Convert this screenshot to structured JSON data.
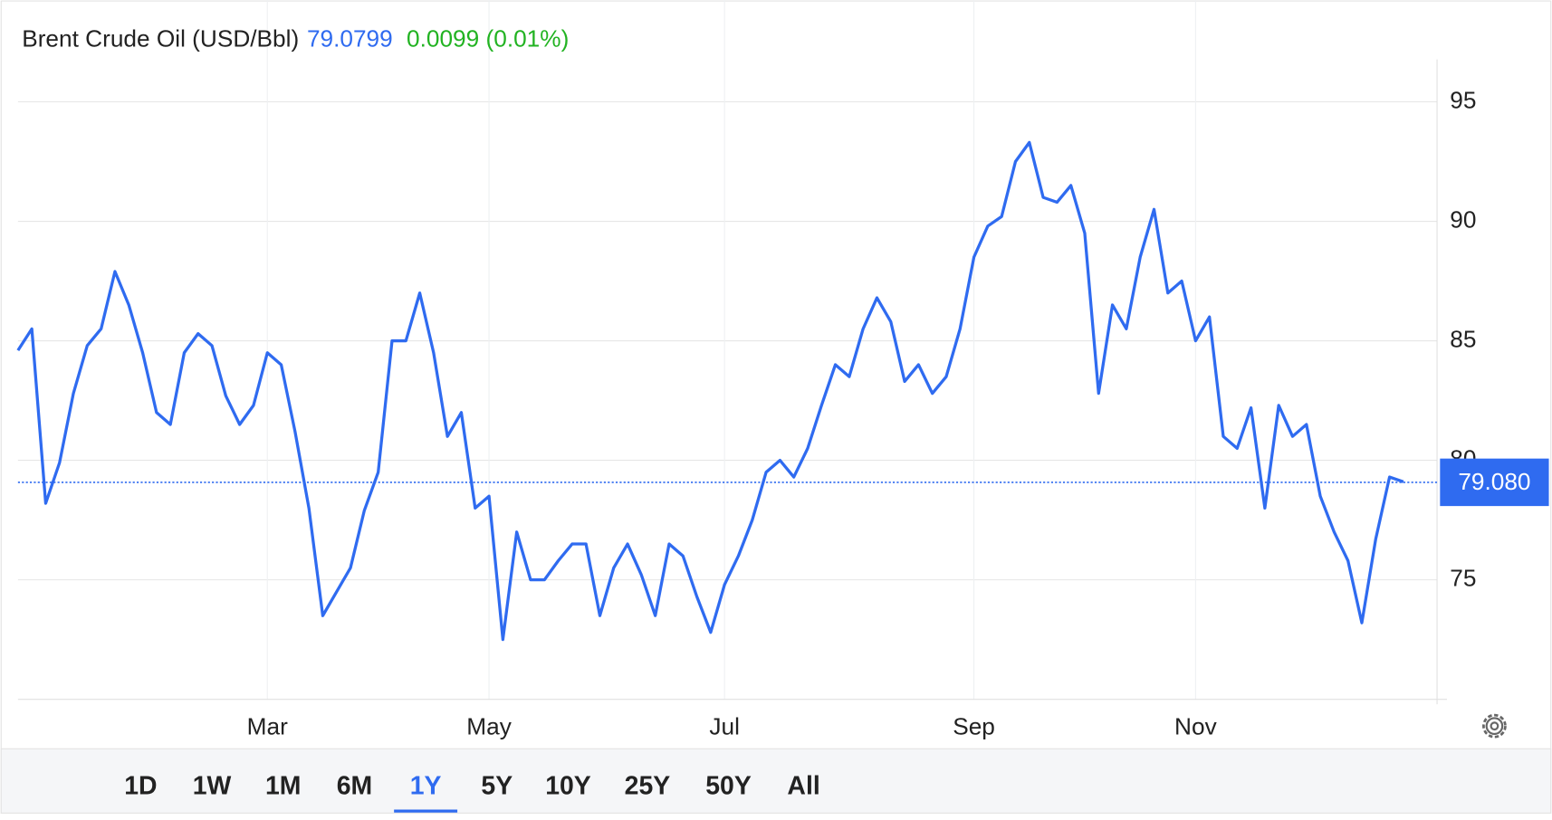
{
  "chart_data": {
    "type": "line",
    "title": "Brent Crude Oil (USD/Bbl)",
    "price": "79.0799",
    "change": "0.0099 (0.01%)",
    "categories": [
      null,
      null,
      null,
      null,
      null,
      null,
      null,
      null,
      null,
      null,
      null,
      null,
      null,
      null,
      null,
      null,
      null,
      null,
      "Mar",
      null,
      null,
      null,
      null,
      null,
      null,
      null,
      null,
      null,
      null,
      null,
      null,
      null,
      null,
      null,
      "May",
      null,
      null,
      null,
      null,
      null,
      null,
      null,
      null,
      null,
      null,
      null,
      null,
      null,
      null,
      null,
      null,
      "Jul",
      null,
      null,
      null,
      null,
      null,
      null,
      null,
      null,
      null,
      null,
      null,
      null,
      null,
      null,
      null,
      null,
      null,
      "Sep",
      null,
      null,
      null,
      null,
      null,
      null,
      null,
      null,
      null,
      null,
      null,
      null,
      null,
      null,
      null,
      "Nov",
      null,
      null,
      null,
      null,
      null,
      null,
      null,
      null,
      null,
      null,
      null,
      null,
      null,
      null,
      null
    ],
    "series": [
      {
        "name": "Brent Crude Oil",
        "color": "#2f6bf0",
        "values": [
          84.6,
          85.5,
          78.2,
          79.9,
          82.8,
          84.8,
          85.5,
          87.9,
          86.5,
          84.5,
          82.0,
          81.5,
          84.5,
          85.3,
          84.8,
          82.7,
          81.5,
          82.3,
          84.5,
          84.0,
          81.2,
          78.0,
          73.5,
          74.5,
          75.5,
          77.9,
          79.5,
          85.0,
          85.0,
          87.0,
          84.5,
          81.0,
          82.0,
          78.0,
          78.5,
          72.5,
          77.0,
          75.0,
          75.0,
          75.8,
          76.5,
          76.5,
          73.5,
          75.5,
          76.5,
          75.2,
          73.5,
          76.5,
          76.0,
          74.3,
          72.8,
          74.8,
          76.0,
          77.5,
          79.5,
          80.0,
          79.3,
          80.5,
          82.3,
          84.0,
          83.5,
          85.5,
          86.8,
          85.8,
          83.3,
          84.0,
          82.8,
          83.5,
          85.5,
          88.5,
          89.8,
          90.2,
          92.5,
          93.3,
          91.0,
          90.8,
          91.5,
          89.5,
          82.8,
          86.5,
          85.5,
          88.5,
          90.5,
          87.0,
          87.5,
          85.0,
          86.0,
          81.0,
          80.5,
          82.2,
          78.0,
          82.3,
          81.0,
          81.5,
          78.5,
          77.0,
          75.8,
          73.2,
          76.7,
          79.3,
          79.1
        ]
      }
    ],
    "last_value": {
      "value": 79.08,
      "label": "79.080"
    },
    "ylim": [
      70,
      97
    ],
    "yticks": [
      75,
      80,
      85,
      90,
      95
    ],
    "grid": true,
    "ranges": [
      "1D",
      "1W",
      "1M",
      "6M",
      "1Y",
      "5Y",
      "10Y",
      "25Y",
      "50Y",
      "All"
    ],
    "selected_range": "1Y"
  }
}
